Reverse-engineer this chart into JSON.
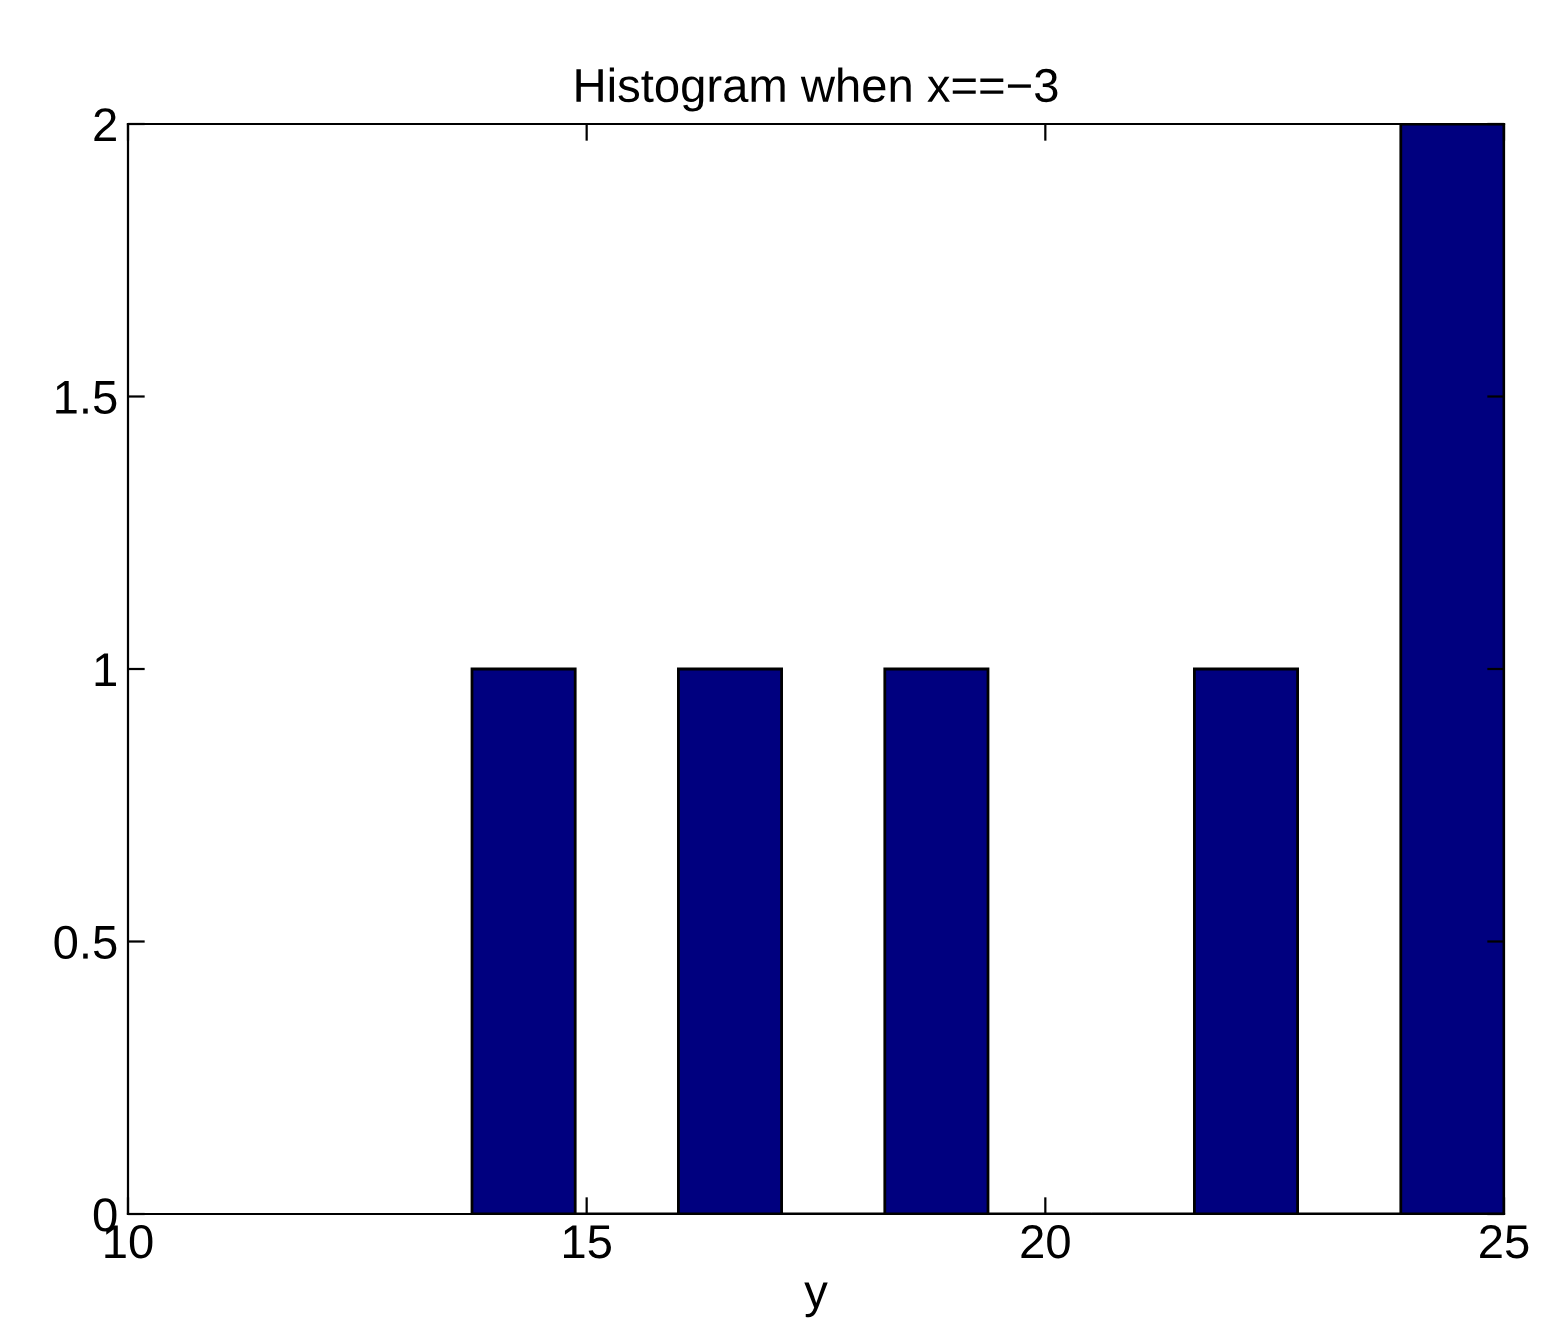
{
  "chart_data": {
    "type": "histogram",
    "title": "Histogram when x==−3",
    "xlabel": "y",
    "bins": [
      13.75,
      14.875,
      16.0,
      17.125,
      18.25,
      19.375,
      20.5,
      21.625,
      22.75,
      23.875,
      25.0
    ],
    "values": [
      1,
      0,
      1,
      0,
      1,
      0,
      0,
      1,
      0,
      2
    ],
    "color": "#00007f",
    "xlim": [
      10,
      25
    ],
    "xticks": [
      10,
      15,
      20,
      25
    ],
    "ylim": [
      0,
      2
    ],
    "yticks": [
      0,
      0.5,
      1,
      1.5,
      2
    ],
    "grid": false
  }
}
